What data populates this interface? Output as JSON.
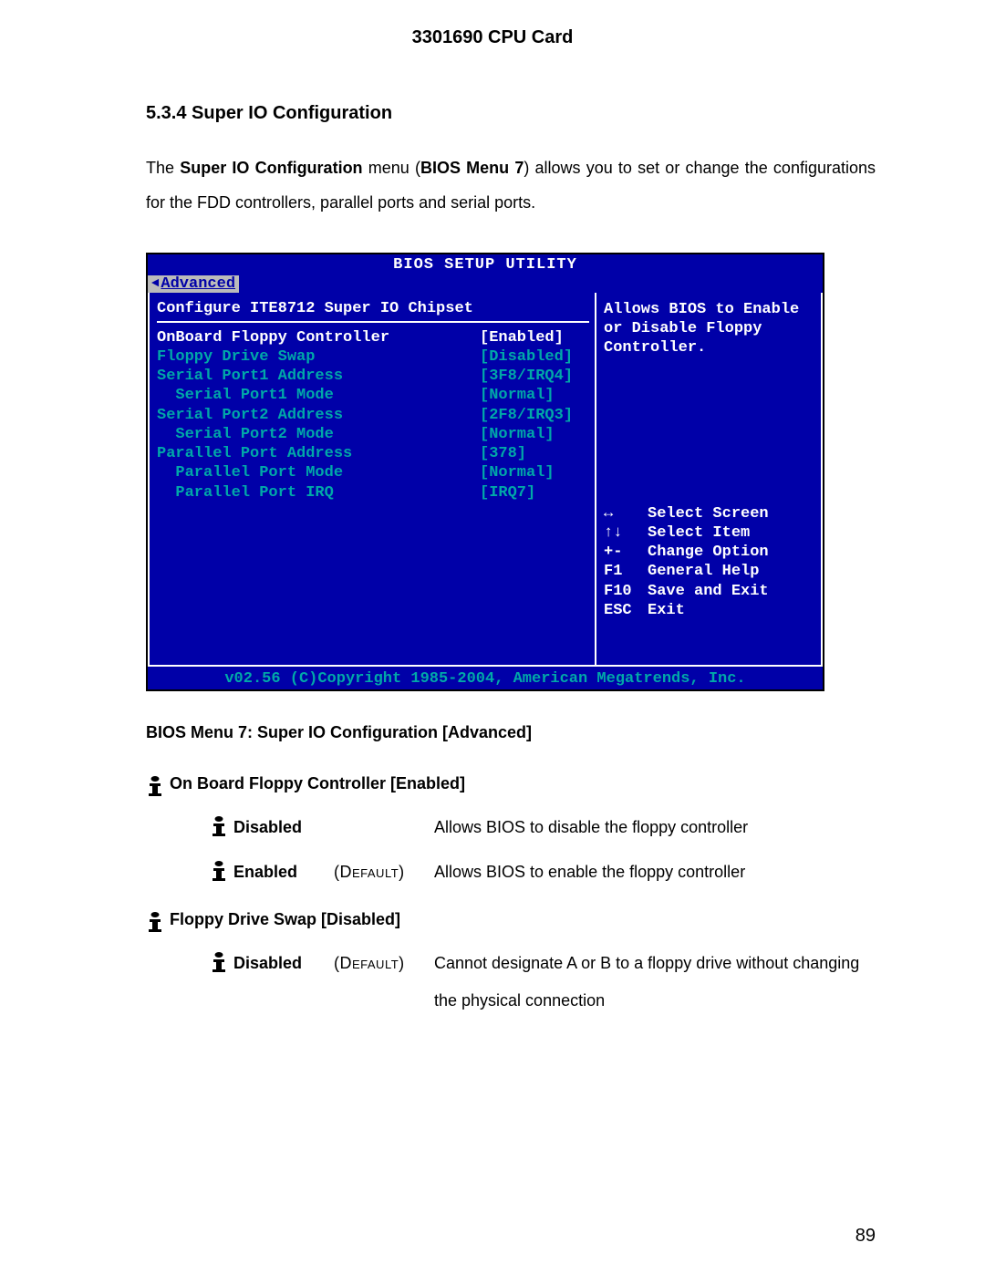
{
  "page": {
    "header_title": "3301690 CPU Card",
    "section_heading": "5.3.4  Super IO Configuration",
    "body_prefix": "The ",
    "body_bold1": "Super IO Configuration",
    "body_mid1": " menu (",
    "body_bold2": "BIOS Menu 7",
    "body_mid2": ") allows you to set or change the configurations for the FDD controllers, parallel ports and serial ports.",
    "caption": "BIOS Menu 7: Super IO Configuration [Advanced]",
    "page_number": "89"
  },
  "bios": {
    "title": "BIOS SETUP UTILITY",
    "tab": "Advanced",
    "config_heading": "Configure ITE8712 Super IO Chipset",
    "rows": [
      {
        "label": "OnBoard Floppy Controller",
        "value": "[Enabled]",
        "indent": 0,
        "hl": true
      },
      {
        "label": "Floppy Drive Swap",
        "value": "[Disabled]",
        "indent": 0,
        "hl": false
      },
      {
        "label": "Serial Port1 Address",
        "value": "[3F8/IRQ4]",
        "indent": 0,
        "hl": false
      },
      {
        "label": "Serial Port1 Mode",
        "value": "[Normal]",
        "indent": 1,
        "hl": false
      },
      {
        "label": "Serial Port2 Address",
        "value": "[2F8/IRQ3]",
        "indent": 0,
        "hl": false
      },
      {
        "label": "Serial Port2 Mode",
        "value": "[Normal]",
        "indent": 1,
        "hl": false
      },
      {
        "label": "Parallel Port Address",
        "value": "[378]",
        "indent": 0,
        "hl": false
      },
      {
        "label": "Parallel Port Mode",
        "value": "[Normal]",
        "indent": 1,
        "hl": false
      },
      {
        "label": "Parallel Port IRQ",
        "value": "[IRQ7]",
        "indent": 1,
        "hl": false
      }
    ],
    "help_lines": [
      "Allows BIOS to Enable",
      "or Disable Floppy",
      "Controller."
    ],
    "keys": [
      {
        "k": "↔",
        "d": "Select Screen"
      },
      {
        "k": "↑↓",
        "d": "Select Item"
      },
      {
        "k": "+-",
        "d": "Change Option"
      },
      {
        "k": "F1",
        "d": "General Help"
      },
      {
        "k": "F10",
        "d": "Save and Exit"
      },
      {
        "k": "ESC",
        "d": "Exit"
      }
    ],
    "footer": "v02.56 (C)Copyright 1985-2004, American Megatrends, Inc.",
    "colors": {
      "bg": "#0000a8",
      "text_white": "#ffffff",
      "text_cyan": "#00a8a8",
      "tab_bg": "#bbbbbb"
    }
  },
  "options": [
    {
      "title": "On Board Floppy Controller [Enabled]",
      "items": [
        {
          "name": "Disabled",
          "def": "",
          "desc": "Allows BIOS to disable the floppy controller"
        },
        {
          "name": "Enabled",
          "def": "(Default)",
          "desc": "Allows BIOS to enable the floppy controller"
        }
      ]
    },
    {
      "title": "Floppy Drive Swap [Disabled]",
      "items": [
        {
          "name": "Disabled",
          "def": "(Default)",
          "desc": "Cannot designate A or B to a floppy drive without changing the physical connection"
        }
      ]
    }
  ]
}
